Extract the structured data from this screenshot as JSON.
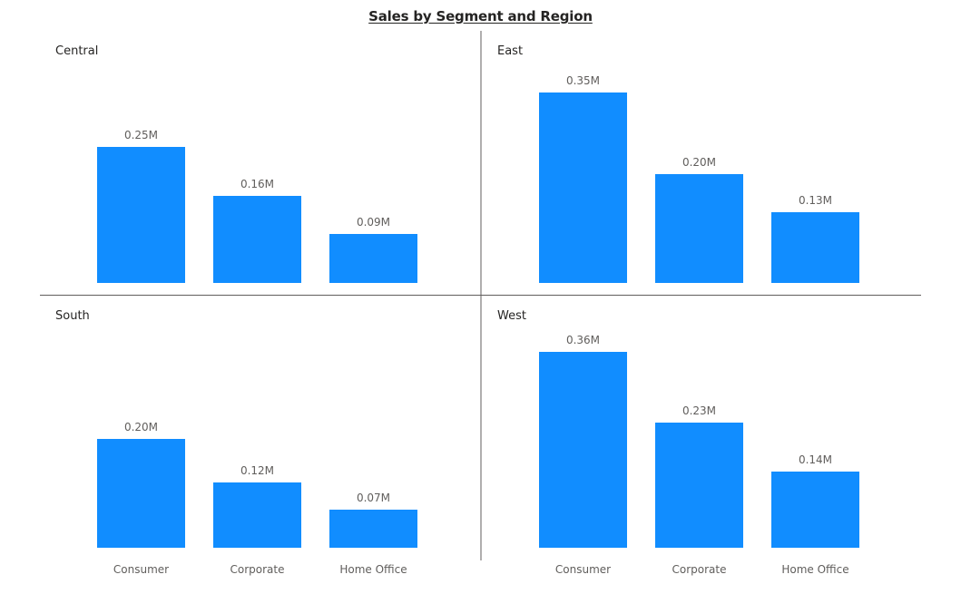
{
  "chart_data": {
    "type": "bar",
    "title": "Sales by Segment and Region",
    "categories": [
      "Consumer",
      "Corporate",
      "Home Office"
    ],
    "unit_suffix": "M",
    "bar_color": "#118DFF",
    "divider_color": "#605e5c",
    "grid": false,
    "panels": [
      {
        "name": "Central",
        "values": [
          0.25,
          0.16,
          0.09
        ],
        "labels": [
          "0.25M",
          "0.16M",
          "0.09M"
        ]
      },
      {
        "name": "East",
        "values": [
          0.35,
          0.2,
          0.13
        ],
        "labels": [
          "0.35M",
          "0.20M",
          "0.13M"
        ]
      },
      {
        "name": "South",
        "values": [
          0.2,
          0.12,
          0.07
        ],
        "labels": [
          "0.20M",
          "0.12M",
          "0.07M"
        ]
      },
      {
        "name": "West",
        "values": [
          0.36,
          0.23,
          0.14
        ],
        "labels": [
          "0.36M",
          "0.23M",
          "0.14M"
        ]
      }
    ]
  }
}
